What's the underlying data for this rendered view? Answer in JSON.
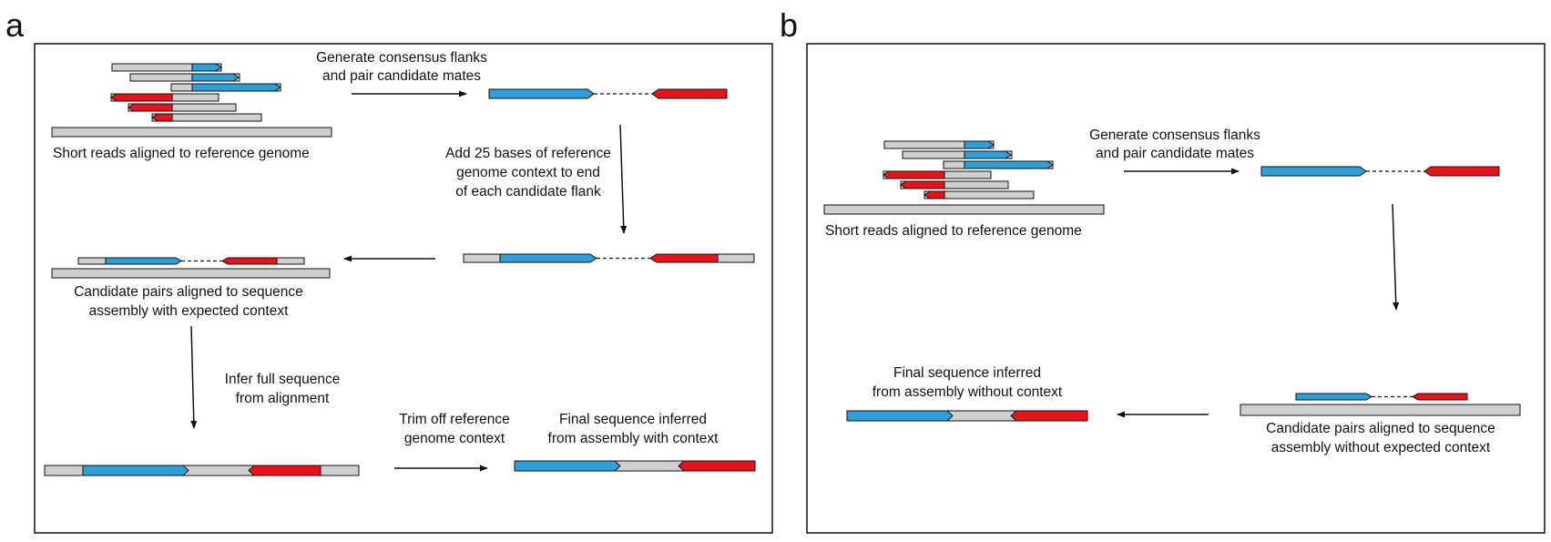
{
  "panels": [
    {
      "letter": "a",
      "labels": {
        "reads_caption": "Short reads aligned to reference genome",
        "step1_line1": "Generate consensus flanks",
        "step1_line2": "and pair candidate mates",
        "step2_line1": "Add 25 bases of reference",
        "step2_line2": "genome context to end",
        "step2_line3": "of each candidate flank",
        "step3_line1": "Candidate pairs aligned to sequence",
        "step3_line2": "assembly with expected context",
        "step4_line1": "Infer full sequence",
        "step4_line2": "from alignment",
        "step5_line1": "Trim off reference",
        "step5_line2": "genome context",
        "final_line1": "Final sequence inferred",
        "final_line2": "from assembly with context"
      }
    },
    {
      "letter": "b",
      "labels": {
        "reads_caption": "Short reads aligned to reference genome",
        "step1_line1": "Generate consensus flanks",
        "step1_line2": "and pair candidate mates",
        "step3_line1": "Candidate pairs aligned to sequence",
        "step3_line2": "assembly without expected context",
        "final_line1": "Final sequence inferred",
        "final_line2": "from assembly without context"
      }
    }
  ],
  "colors": {
    "blue": "#2e9fd8",
    "red": "#e8141c",
    "gray": "#cfcfcf",
    "stroke": "#111111"
  }
}
